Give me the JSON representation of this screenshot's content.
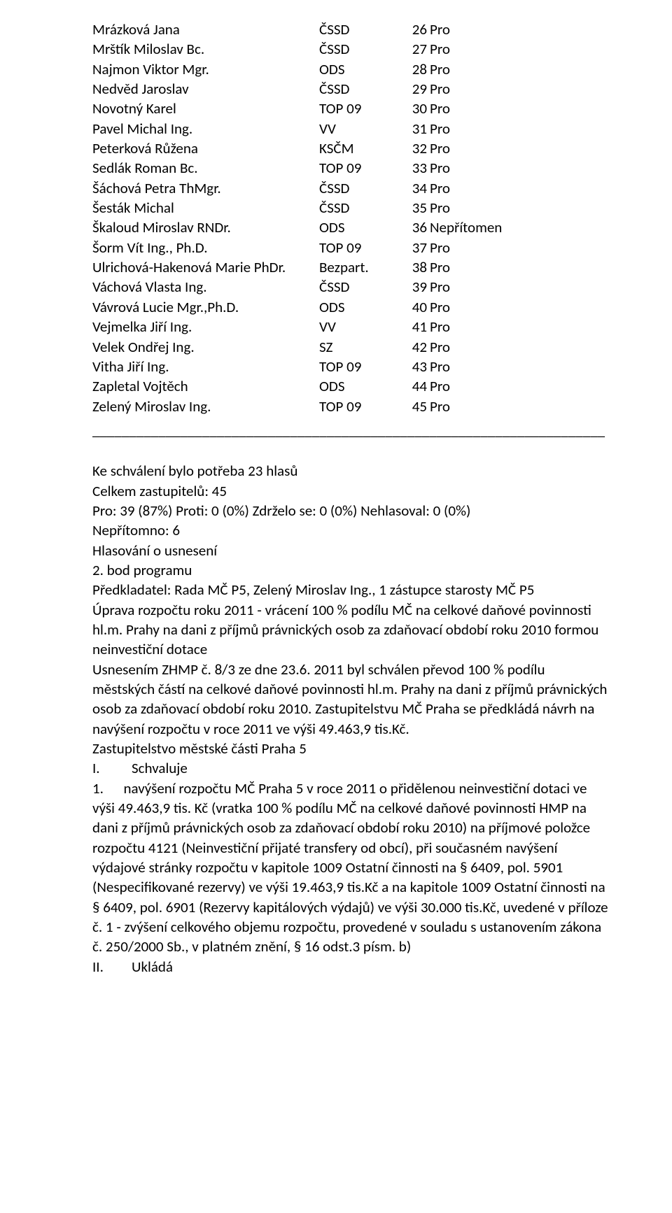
{
  "votes": [
    {
      "name": "Mrázková Jana",
      "party": "ČSSD",
      "num": "26",
      "vote": "Pro"
    },
    {
      "name": "Mrštík Miloslav Bc.",
      "party": "ČSSD",
      "num": "27",
      "vote": "Pro"
    },
    {
      "name": "Najmon Viktor Mgr.",
      "party": "ODS",
      "num": "28",
      "vote": "Pro"
    },
    {
      "name": "Nedvěd Jaroslav",
      "party": "ČSSD",
      "num": "29",
      "vote": "Pro"
    },
    {
      "name": "Novotný Karel",
      "party": "TOP 09",
      "num": "30",
      "vote": "Pro"
    },
    {
      "name": "Pavel Michal Ing.",
      "party": "VV",
      "num": "31",
      "vote": "Pro"
    },
    {
      "name": "Peterková Růžena",
      "party": "KSČM",
      "num": "32",
      "vote": "Pro"
    },
    {
      "name": "Sedlák Roman Bc.",
      "party": "TOP 09",
      "num": "33",
      "vote": "Pro"
    },
    {
      "name": "Šáchová Petra ThMgr.",
      "party": "ČSSD",
      "num": "34",
      "vote": "Pro"
    },
    {
      "name": "Šesták Michal",
      "party": "ČSSD",
      "num": "35",
      "vote": "Pro"
    },
    {
      "name": "Škaloud Miroslav RNDr.",
      "party": "ODS",
      "num": "36",
      "vote": "Nepřítomen"
    },
    {
      "name": "Šorm Vít Ing., Ph.D.",
      "party": "TOP 09",
      "num": "37",
      "vote": "Pro"
    },
    {
      "name": "Ulrichová-Hakenová Marie PhDr.",
      "party": "Bezpart.",
      "num": "38",
      "vote": "Pro"
    },
    {
      "name": "Váchová Vlasta Ing.",
      "party": "ČSSD",
      "num": "39",
      "vote": "Pro"
    },
    {
      "name": "Vávrová Lucie Mgr.,Ph.D.",
      "party": "ODS",
      "num": "40",
      "vote": "Pro"
    },
    {
      "name": "Vejmelka Jiří Ing.",
      "party": "VV",
      "num": "41",
      "vote": "Pro"
    },
    {
      "name": "Velek Ondřej Ing.",
      "party": "SZ",
      "num": "42",
      "vote": "Pro"
    },
    {
      "name": "Vitha Jiří Ing.",
      "party": "TOP 09",
      "num": "43",
      "vote": "Pro"
    },
    {
      "name": "Zapletal Vojtěch",
      "party": "ODS",
      "num": "44",
      "vote": "Pro"
    },
    {
      "name": "Zelený Miroslav Ing.",
      "party": "TOP 09",
      "num": "45",
      "vote": "Pro"
    }
  ],
  "divider": "______________________________________________________________________",
  "body": {
    "l1": "Ke schválení bylo potřeba 23 hlasů",
    "l2": "Celkem zastupitelů: 45",
    "l3": "Pro: 39 (87%)  Proti: 0 (0%)  Zdrželo se: 0 (0%)  Nehlasoval: 0 (0%)",
    "l4": "Nepřítomno: 6",
    "l5": "Hlasování o usnesení",
    "l6": "2. bod programu",
    "l7": "Předkladatel: Rada MČ P5, Zelený Miroslav Ing., 1 zástupce starosty MČ P5",
    "l8": "Úprava rozpočtu roku 2011 - vrácení 100 % podílu MČ na celkové daňové povinnosti hl.m. Prahy na dani z příjmů právnických osob za zdaňovací období roku 2010 formou neinvestiční dotace",
    "l9": "Usnesením ZHMP č. 8/3 ze dne 23.6. 2011 byl schválen převod 100 % podílu městských částí na celkové daňové povinnosti hl.m. Prahy na dani z příjmů právnických osob za zdaňovací období roku 2010. Zastupitelstvu MČ Praha se předkládá návrh na navýšení rozpočtu v roce 2011 ve výši 49.463,9 tis.Kč.",
    "l10": "Zastupitelstvo městské části Praha 5",
    "i1_num": "I.",
    "i1_txt": "Schvaluje",
    "p1_num": "1.",
    "p1_txt": "navýšení rozpočtu MČ Praha 5 v roce 2011 o přidělenou neinvestiční dotaci ve výši 49.463,9 tis. Kč (vratka 100 %  podílu MČ na celkové daňové povinnosti HMP na dani z příjmů právnických osob za zdaňovací období roku 2010) na příjmové položce rozpočtu 4121 (Neinvestiční přijaté transfery od obcí), při současném navýšení výdajové stránky rozpočtu v kapitole 1009 Ostatní činnosti na § 6409, pol. 5901 (Nespecifikované rezervy) ve výši 19.463,9 tis.Kč a na kapitole 1009 Ostatní činnosti na § 6409, pol. 6901 (Rezervy kapitálových výdajů) ve výši 30.000 tis.Kč, uvedené v příloze č. 1 - zvýšení celkového objemu rozpočtu, provedené v souladu s ustanovením zákona č. 250/2000 Sb., v platném znění, § 16 odst.3 písm. b)",
    "i2_num": "II.",
    "i2_txt": "Ukládá"
  }
}
